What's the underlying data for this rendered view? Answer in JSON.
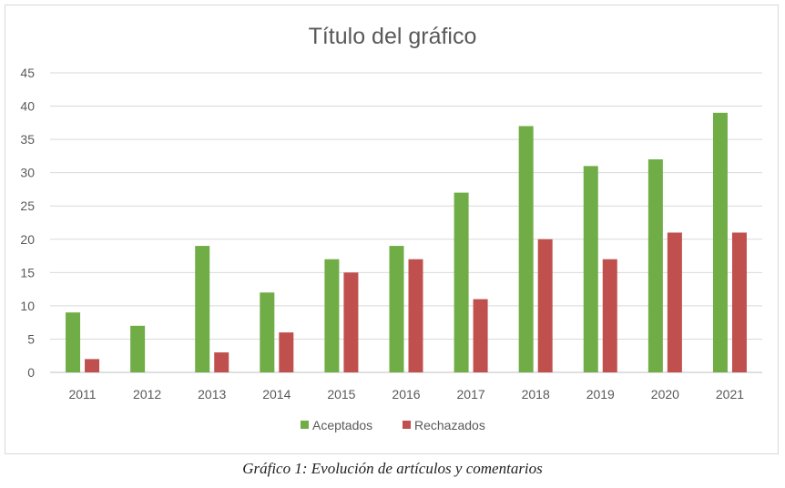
{
  "chart_data": {
    "type": "bar",
    "title": "Título del gráfico",
    "categories": [
      "2011",
      "2012",
      "2013",
      "2014",
      "2015",
      "2016",
      "2017",
      "2018",
      "2019",
      "2020",
      "2021"
    ],
    "series": [
      {
        "name": "Aceptados",
        "color": "#70ad47",
        "values": [
          9,
          7,
          19,
          12,
          17,
          19,
          27,
          37,
          31,
          32,
          39
        ]
      },
      {
        "name": "Rechazados",
        "color": "#c0504d",
        "values": [
          2,
          0,
          3,
          6,
          15,
          17,
          11,
          20,
          17,
          21,
          21
        ]
      }
    ],
    "ylim": [
      0,
      45
    ],
    "yticks": [
      "0",
      "5",
      "10",
      "15",
      "20",
      "25",
      "30",
      "35",
      "40",
      "45"
    ],
    "grid": true,
    "legend_position": "bottom"
  },
  "caption": "Gráfico 1: Evolución de artículos y comentarios"
}
